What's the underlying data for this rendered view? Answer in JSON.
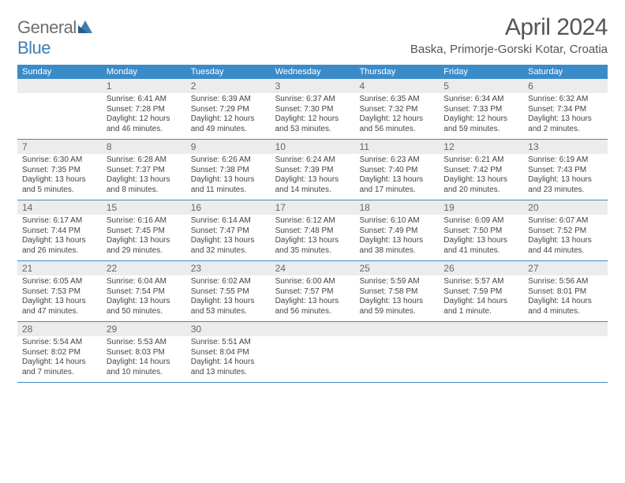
{
  "logo": {
    "text_a": "General",
    "text_b": "Blue"
  },
  "title": "April 2024",
  "location": "Baska, Primorje-Gorski Kotar, Croatia",
  "colors": {
    "brand_blue": "#3b8bc9",
    "logo_blue": "#3b7fb5",
    "header_gray": "#ececec",
    "text_gray": "#555"
  },
  "day_names": [
    "Sunday",
    "Monday",
    "Tuesday",
    "Wednesday",
    "Thursday",
    "Friday",
    "Saturday"
  ],
  "weeks": [
    [
      {
        "num": "",
        "sunrise": "",
        "sunset": "",
        "daylight": ""
      },
      {
        "num": "1",
        "sunrise": "Sunrise: 6:41 AM",
        "sunset": "Sunset: 7:28 PM",
        "daylight": "Daylight: 12 hours and 46 minutes."
      },
      {
        "num": "2",
        "sunrise": "Sunrise: 6:39 AM",
        "sunset": "Sunset: 7:29 PM",
        "daylight": "Daylight: 12 hours and 49 minutes."
      },
      {
        "num": "3",
        "sunrise": "Sunrise: 6:37 AM",
        "sunset": "Sunset: 7:30 PM",
        "daylight": "Daylight: 12 hours and 53 minutes."
      },
      {
        "num": "4",
        "sunrise": "Sunrise: 6:35 AM",
        "sunset": "Sunset: 7:32 PM",
        "daylight": "Daylight: 12 hours and 56 minutes."
      },
      {
        "num": "5",
        "sunrise": "Sunrise: 6:34 AM",
        "sunset": "Sunset: 7:33 PM",
        "daylight": "Daylight: 12 hours and 59 minutes."
      },
      {
        "num": "6",
        "sunrise": "Sunrise: 6:32 AM",
        "sunset": "Sunset: 7:34 PM",
        "daylight": "Daylight: 13 hours and 2 minutes."
      }
    ],
    [
      {
        "num": "7",
        "sunrise": "Sunrise: 6:30 AM",
        "sunset": "Sunset: 7:35 PM",
        "daylight": "Daylight: 13 hours and 5 minutes."
      },
      {
        "num": "8",
        "sunrise": "Sunrise: 6:28 AM",
        "sunset": "Sunset: 7:37 PM",
        "daylight": "Daylight: 13 hours and 8 minutes."
      },
      {
        "num": "9",
        "sunrise": "Sunrise: 6:26 AM",
        "sunset": "Sunset: 7:38 PM",
        "daylight": "Daylight: 13 hours and 11 minutes."
      },
      {
        "num": "10",
        "sunrise": "Sunrise: 6:24 AM",
        "sunset": "Sunset: 7:39 PM",
        "daylight": "Daylight: 13 hours and 14 minutes."
      },
      {
        "num": "11",
        "sunrise": "Sunrise: 6:23 AM",
        "sunset": "Sunset: 7:40 PM",
        "daylight": "Daylight: 13 hours and 17 minutes."
      },
      {
        "num": "12",
        "sunrise": "Sunrise: 6:21 AM",
        "sunset": "Sunset: 7:42 PM",
        "daylight": "Daylight: 13 hours and 20 minutes."
      },
      {
        "num": "13",
        "sunrise": "Sunrise: 6:19 AM",
        "sunset": "Sunset: 7:43 PM",
        "daylight": "Daylight: 13 hours and 23 minutes."
      }
    ],
    [
      {
        "num": "14",
        "sunrise": "Sunrise: 6:17 AM",
        "sunset": "Sunset: 7:44 PM",
        "daylight": "Daylight: 13 hours and 26 minutes."
      },
      {
        "num": "15",
        "sunrise": "Sunrise: 6:16 AM",
        "sunset": "Sunset: 7:45 PM",
        "daylight": "Daylight: 13 hours and 29 minutes."
      },
      {
        "num": "16",
        "sunrise": "Sunrise: 6:14 AM",
        "sunset": "Sunset: 7:47 PM",
        "daylight": "Daylight: 13 hours and 32 minutes."
      },
      {
        "num": "17",
        "sunrise": "Sunrise: 6:12 AM",
        "sunset": "Sunset: 7:48 PM",
        "daylight": "Daylight: 13 hours and 35 minutes."
      },
      {
        "num": "18",
        "sunrise": "Sunrise: 6:10 AM",
        "sunset": "Sunset: 7:49 PM",
        "daylight": "Daylight: 13 hours and 38 minutes."
      },
      {
        "num": "19",
        "sunrise": "Sunrise: 6:09 AM",
        "sunset": "Sunset: 7:50 PM",
        "daylight": "Daylight: 13 hours and 41 minutes."
      },
      {
        "num": "20",
        "sunrise": "Sunrise: 6:07 AM",
        "sunset": "Sunset: 7:52 PM",
        "daylight": "Daylight: 13 hours and 44 minutes."
      }
    ],
    [
      {
        "num": "21",
        "sunrise": "Sunrise: 6:05 AM",
        "sunset": "Sunset: 7:53 PM",
        "daylight": "Daylight: 13 hours and 47 minutes."
      },
      {
        "num": "22",
        "sunrise": "Sunrise: 6:04 AM",
        "sunset": "Sunset: 7:54 PM",
        "daylight": "Daylight: 13 hours and 50 minutes."
      },
      {
        "num": "23",
        "sunrise": "Sunrise: 6:02 AM",
        "sunset": "Sunset: 7:55 PM",
        "daylight": "Daylight: 13 hours and 53 minutes."
      },
      {
        "num": "24",
        "sunrise": "Sunrise: 6:00 AM",
        "sunset": "Sunset: 7:57 PM",
        "daylight": "Daylight: 13 hours and 56 minutes."
      },
      {
        "num": "25",
        "sunrise": "Sunrise: 5:59 AM",
        "sunset": "Sunset: 7:58 PM",
        "daylight": "Daylight: 13 hours and 59 minutes."
      },
      {
        "num": "26",
        "sunrise": "Sunrise: 5:57 AM",
        "sunset": "Sunset: 7:59 PM",
        "daylight": "Daylight: 14 hours and 1 minute."
      },
      {
        "num": "27",
        "sunrise": "Sunrise: 5:56 AM",
        "sunset": "Sunset: 8:01 PM",
        "daylight": "Daylight: 14 hours and 4 minutes."
      }
    ],
    [
      {
        "num": "28",
        "sunrise": "Sunrise: 5:54 AM",
        "sunset": "Sunset: 8:02 PM",
        "daylight": "Daylight: 14 hours and 7 minutes."
      },
      {
        "num": "29",
        "sunrise": "Sunrise: 5:53 AM",
        "sunset": "Sunset: 8:03 PM",
        "daylight": "Daylight: 14 hours and 10 minutes."
      },
      {
        "num": "30",
        "sunrise": "Sunrise: 5:51 AM",
        "sunset": "Sunset: 8:04 PM",
        "daylight": "Daylight: 14 hours and 13 minutes."
      },
      {
        "num": "",
        "sunrise": "",
        "sunset": "",
        "daylight": ""
      },
      {
        "num": "",
        "sunrise": "",
        "sunset": "",
        "daylight": ""
      },
      {
        "num": "",
        "sunrise": "",
        "sunset": "",
        "daylight": ""
      },
      {
        "num": "",
        "sunrise": "",
        "sunset": "",
        "daylight": ""
      }
    ]
  ]
}
